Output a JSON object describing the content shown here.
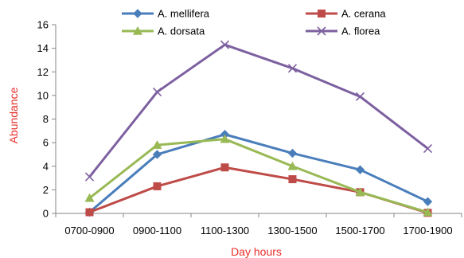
{
  "chart_data": {
    "type": "line",
    "title": "",
    "xlabel": "Day hours",
    "ylabel": "Abundance",
    "categories": [
      "0700-0900",
      "0900-1100",
      "1100-1300",
      "1300-1500",
      "1500-1700",
      "1700-1900"
    ],
    "ylim": [
      0,
      16
    ],
    "yticks": [
      0,
      2,
      4,
      6,
      8,
      10,
      12,
      14,
      16
    ],
    "grid": false,
    "legend_position": "top",
    "series": [
      {
        "name": "A. mellifera",
        "color": "#4a7ebb",
        "marker": "diamond",
        "values": [
          0.1,
          5.0,
          6.7,
          5.1,
          3.7,
          1.0
        ]
      },
      {
        "name": "A. cerana",
        "color": "#be4b48",
        "marker": "square",
        "values": [
          0.1,
          2.3,
          3.9,
          2.9,
          1.8,
          0.05
        ]
      },
      {
        "name": "A. dorsata",
        "color": "#98b954",
        "marker": "triangle",
        "values": [
          1.3,
          5.8,
          6.3,
          4.0,
          1.8,
          0.1
        ]
      },
      {
        "name": "A. florea",
        "color": "#7d60a0",
        "marker": "x",
        "values": [
          3.1,
          10.3,
          14.3,
          12.3,
          9.9,
          5.5
        ]
      }
    ]
  }
}
